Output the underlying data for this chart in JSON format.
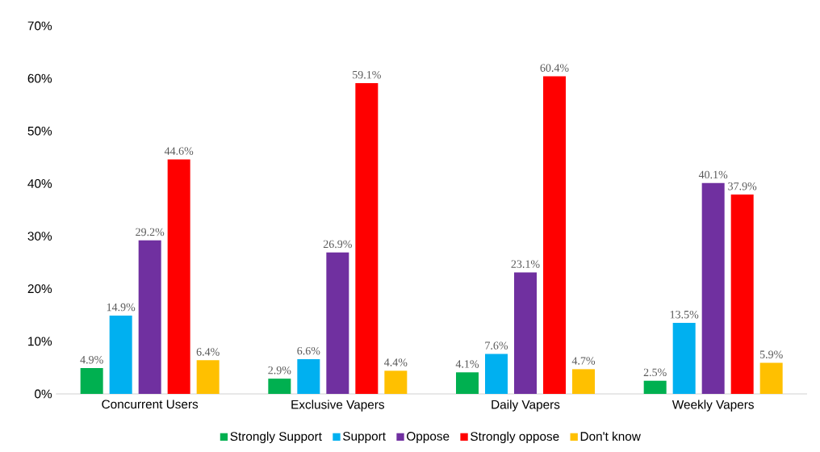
{
  "chart_data": {
    "type": "bar",
    "categories": [
      "Concurrent Users",
      "Exclusive Vapers",
      "Daily Vapers",
      "Weekly Vapers"
    ],
    "series": [
      {
        "name": "Strongly Support",
        "color": "#00b050",
        "values": [
          4.9,
          2.9,
          4.1,
          2.5
        ],
        "value_labels": [
          "4.9%",
          "2.9%",
          "4.1%",
          "2.5%"
        ]
      },
      {
        "name": "Support",
        "color": "#00b0f0",
        "values": [
          14.9,
          6.6,
          7.6,
          13.5
        ],
        "value_labels": [
          "14.9%",
          "6.6%",
          "7.6%",
          "13.5%"
        ]
      },
      {
        "name": "Oppose",
        "color": "#7030a0",
        "values": [
          29.2,
          26.9,
          23.1,
          40.1
        ],
        "value_labels": [
          "29.2%",
          "26.9%",
          "23.1%",
          "40.1%"
        ]
      },
      {
        "name": "Strongly oppose",
        "color": "#ff0000",
        "values": [
          44.6,
          59.1,
          60.4,
          37.9
        ],
        "value_labels": [
          "44.6%",
          "59.1%",
          "60.4%",
          "37.9%"
        ]
      },
      {
        "name": "Don't know",
        "color": "#ffc000",
        "values": [
          6.4,
          4.4,
          4.7,
          5.9
        ],
        "value_labels": [
          "6.4%",
          "4.4%",
          "4.7%",
          "5.9%"
        ]
      }
    ],
    "ylim": [
      0,
      70
    ],
    "yticks": [
      {
        "value": 0,
        "label": "0%"
      },
      {
        "value": 10,
        "label": "10%"
      },
      {
        "value": 20,
        "label": "20%"
      },
      {
        "value": 30,
        "label": "30%"
      },
      {
        "value": 40,
        "label": "40%"
      },
      {
        "value": 50,
        "label": "50%"
      },
      {
        "value": 60,
        "label": "60%"
      },
      {
        "value": 70,
        "label": "70%"
      }
    ],
    "grid": false,
    "legend": "bottom"
  }
}
